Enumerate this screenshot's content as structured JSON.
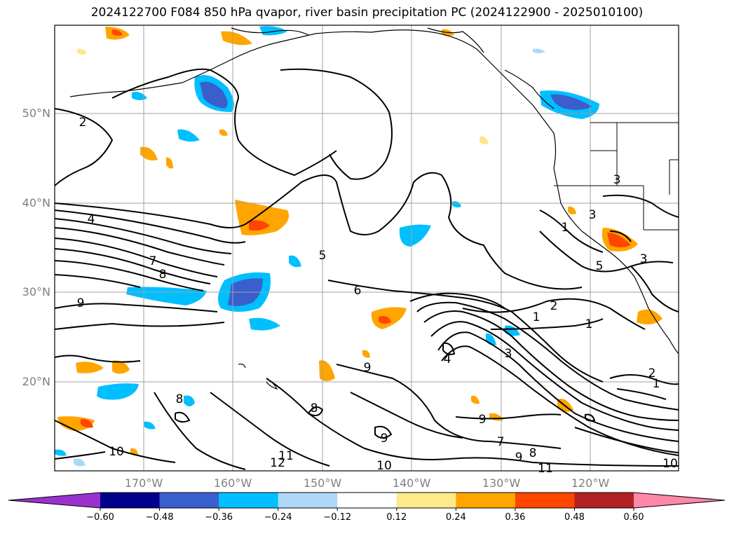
{
  "title": "2024122700 F084 850 hPa qvapor, river basin precipitation PC (2024122900 - 2025010100)",
  "lat_labels": [
    "50°N",
    "40°N",
    "30°N",
    "20°N"
  ],
  "lon_labels": [
    "170°W",
    "160°W",
    "150°W",
    "140°W",
    "130°W",
    "120°W"
  ],
  "colorbar": {
    "ticks": [
      "−0.60",
      "−0.48",
      "−0.36",
      "−0.24",
      "−0.12",
      "0.12",
      "0.24",
      "0.36",
      "0.48",
      "0.60"
    ],
    "colors": [
      "#9932cc",
      "#00008b",
      "#3a5fcd",
      "#00bfff",
      "#add8f6",
      "#ffffff",
      "#ffea8a",
      "#ffa500",
      "#ff4500",
      "#b22222",
      "#ff88aa"
    ]
  },
  "contour_labels": [
    "2",
    "4",
    "7",
    "8",
    "9",
    "5",
    "6",
    "2",
    "1",
    "1",
    "4",
    "3",
    "9",
    "8",
    "10",
    "11",
    "12",
    "9",
    "7",
    "8",
    "9",
    "11",
    "10",
    "3",
    "2",
    "1",
    "1",
    "3",
    "5",
    "3",
    "8",
    "10"
  ],
  "colors": {
    "contour": "#000000",
    "grid": "#a0a0a0",
    "axis_text": "#7f7f7f"
  }
}
